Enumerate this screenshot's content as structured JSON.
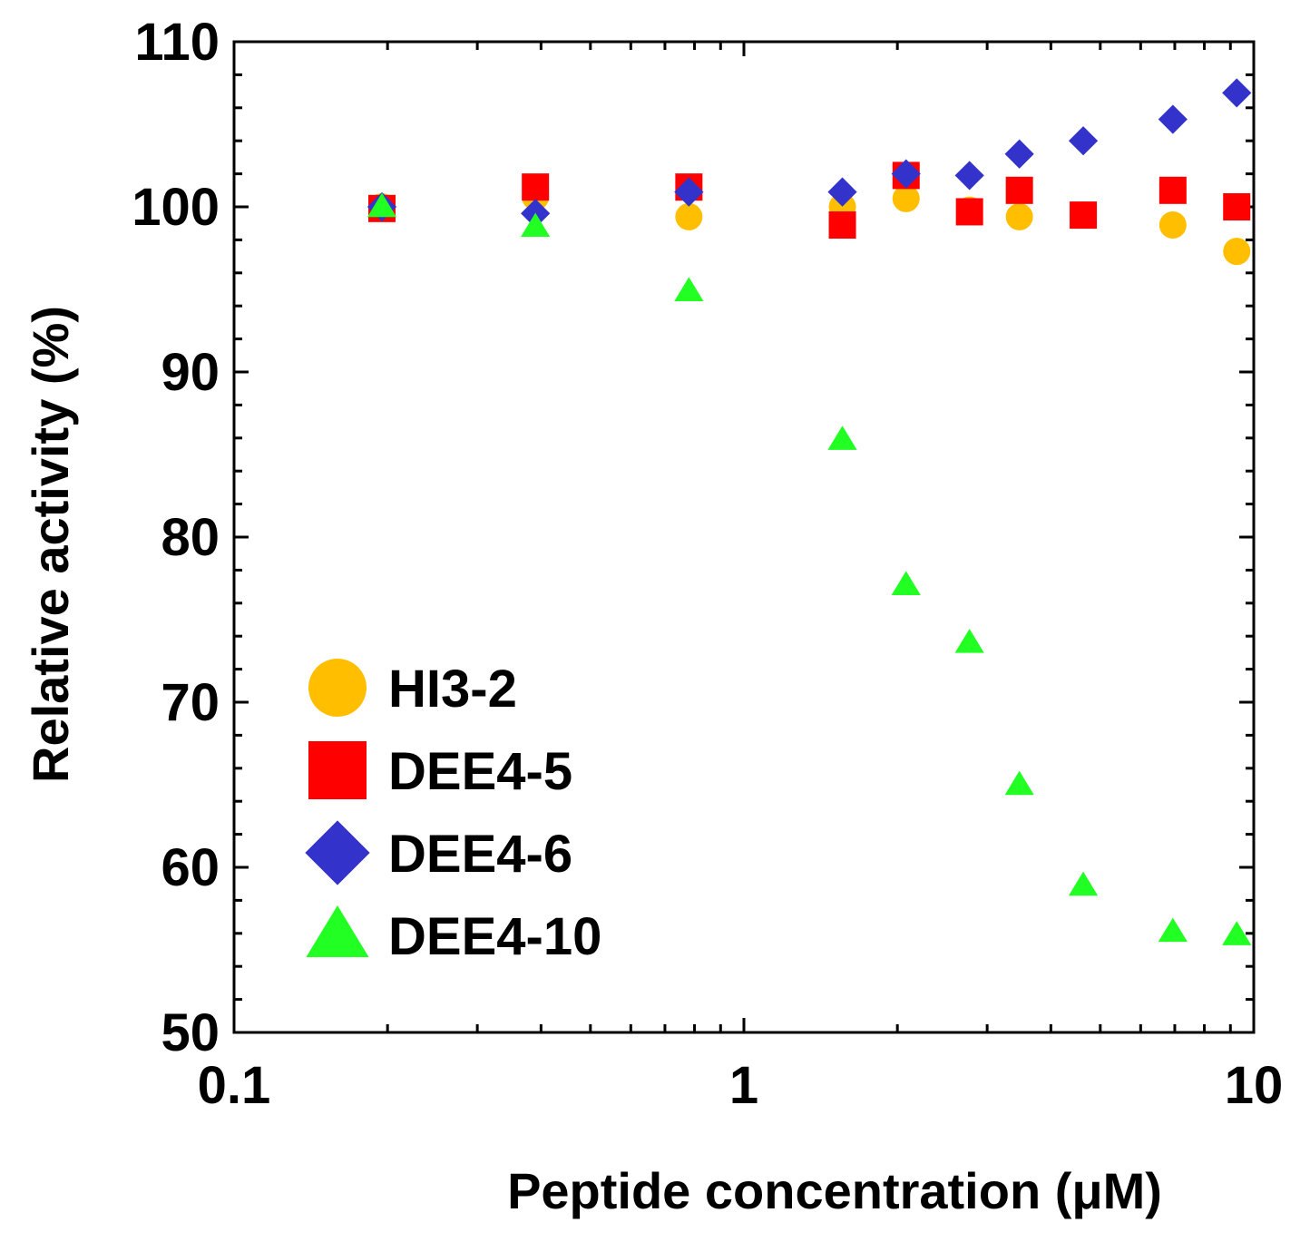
{
  "chart_data": {
    "type": "scatter",
    "title": "",
    "xlabel": "Peptide concentration (μM)",
    "ylabel": "Relative activity (%)",
    "xscale": "log",
    "xlim": [
      0.1,
      10
    ],
    "ylim": [
      50,
      110
    ],
    "x_ticks": [
      {
        "value": 0.1,
        "label": "0.1"
      },
      {
        "value": 1,
        "label": "1"
      },
      {
        "value": 10,
        "label": "10"
      }
    ],
    "y_ticks": [
      {
        "value": 50,
        "label": "50"
      },
      {
        "value": 60,
        "label": "60"
      },
      {
        "value": 70,
        "label": "70"
      },
      {
        "value": 80,
        "label": "80"
      },
      {
        "value": 90,
        "label": "90"
      },
      {
        "value": 100,
        "label": "100"
      },
      {
        "value": 110,
        "label": "110"
      }
    ],
    "grid": false,
    "legend_position": "bottom-left",
    "series": [
      {
        "name": "HI3-2",
        "marker": "circle",
        "color": "#ffbf00",
        "x": [
          0.195,
          0.39,
          0.78,
          1.56,
          2.08,
          2.77,
          3.47,
          4.63,
          6.94,
          9.26
        ],
        "y": [
          100.0,
          100.6,
          99.4,
          100.0,
          100.5,
          99.8,
          99.4,
          99.5,
          98.9,
          97.3
        ]
      },
      {
        "name": "DEE4-5",
        "marker": "square",
        "color": "#ff0000",
        "x": [
          0.195,
          0.39,
          0.78,
          1.56,
          2.08,
          2.77,
          3.47,
          4.63,
          6.94,
          9.26
        ],
        "y": [
          99.9,
          101.2,
          101.2,
          98.9,
          101.9,
          99.7,
          101.0,
          99.5,
          101.0,
          100.0
        ]
      },
      {
        "name": "DEE4-6",
        "marker": "diamond",
        "color": "#3333cc",
        "x": [
          0.195,
          0.39,
          0.78,
          1.56,
          2.08,
          2.77,
          3.47,
          4.63,
          6.94,
          9.26
        ],
        "y": [
          100.0,
          99.6,
          100.9,
          100.9,
          102.0,
          101.9,
          103.2,
          104.0,
          105.3,
          106.9
        ]
      },
      {
        "name": "DEE4-10",
        "marker": "triangle",
        "color": "#22ff22",
        "x": [
          0.195,
          0.39,
          0.78,
          1.56,
          2.08,
          2.77,
          3.47,
          4.63,
          6.94,
          9.26
        ],
        "y": [
          100.0,
          98.8,
          94.9,
          85.9,
          77.1,
          73.6,
          65.0,
          58.9,
          56.1,
          55.9
        ]
      }
    ]
  }
}
